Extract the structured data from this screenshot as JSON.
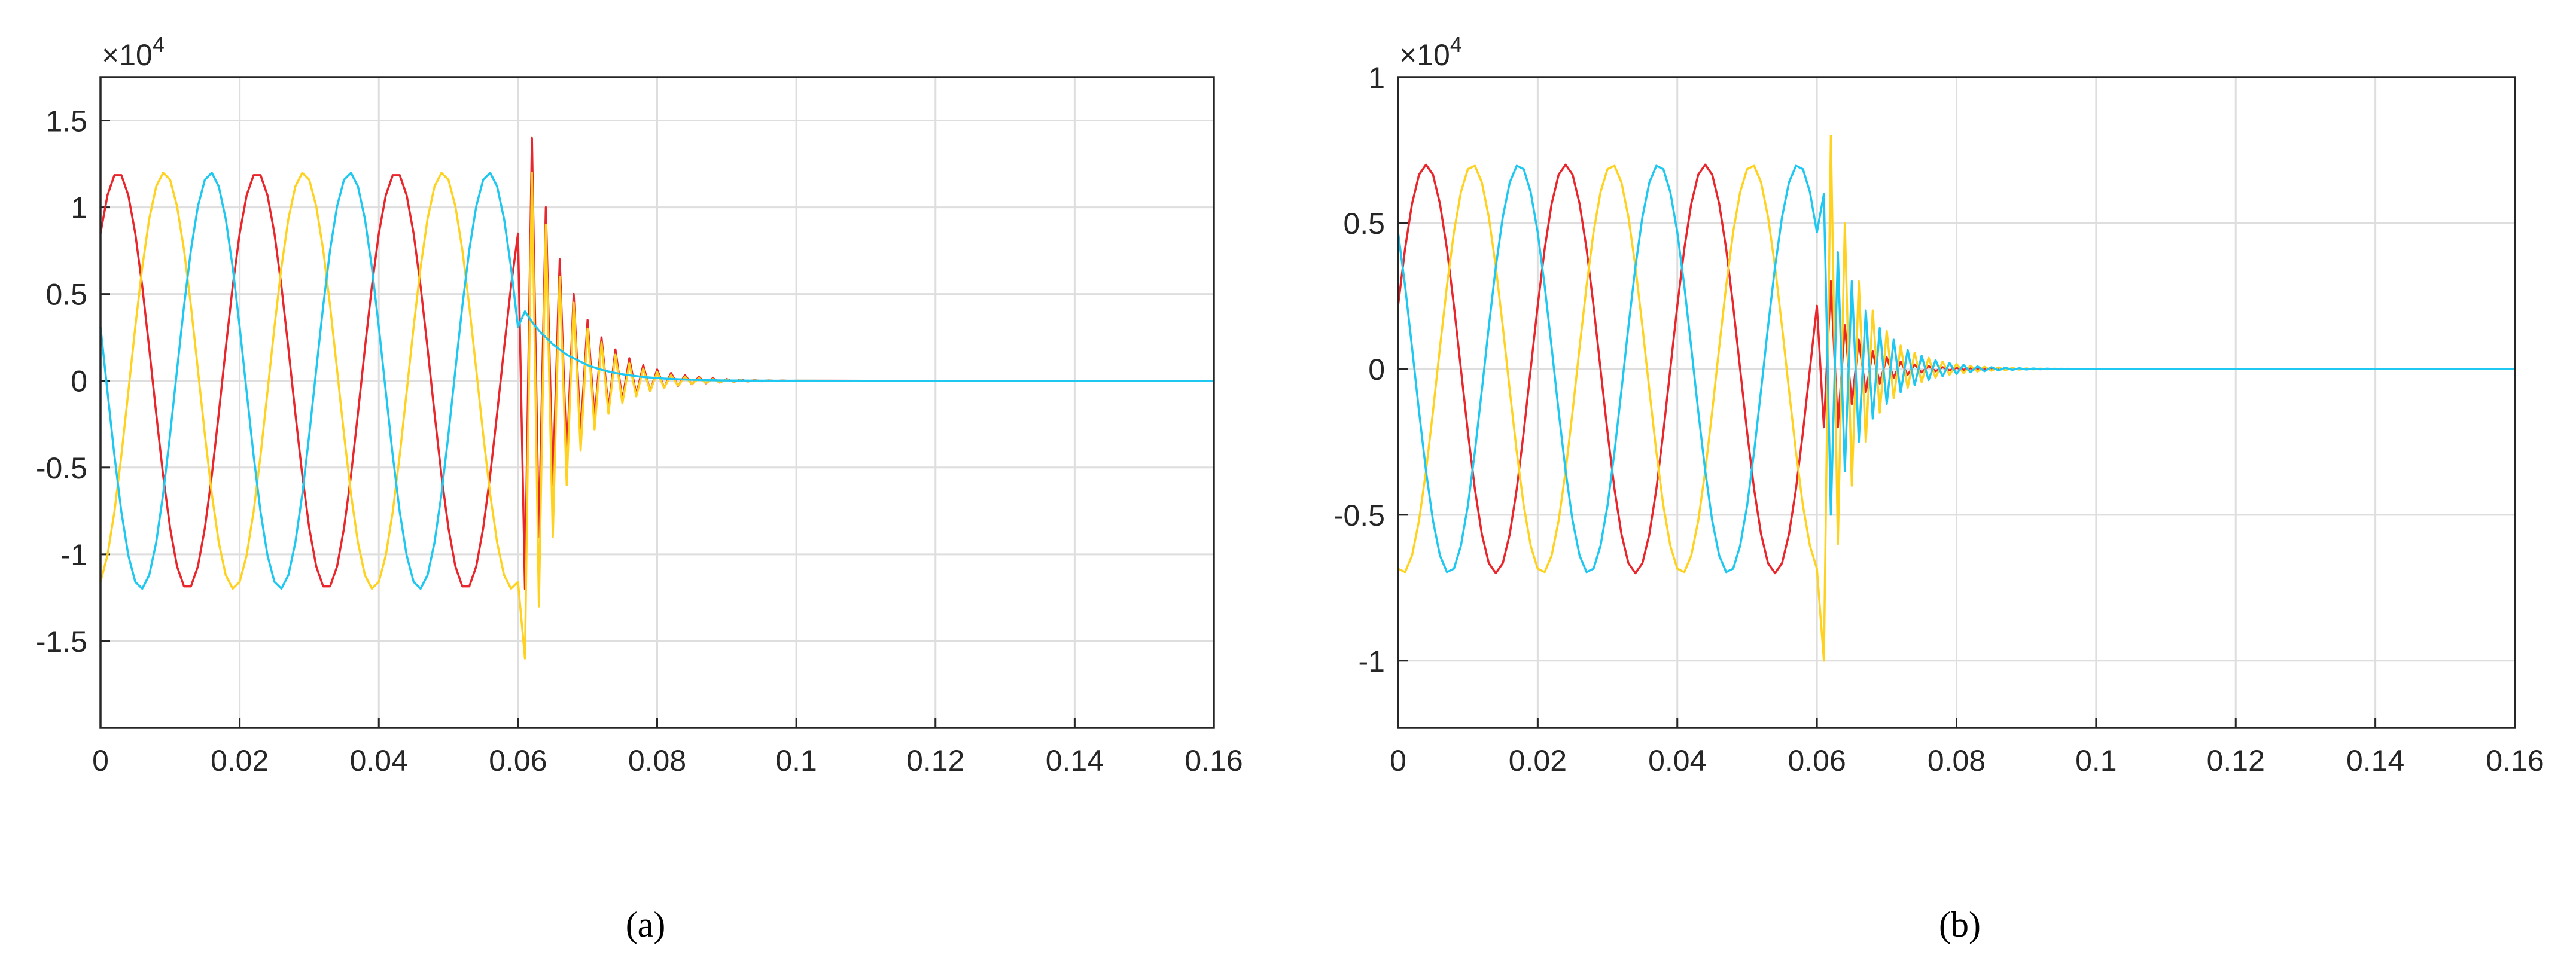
{
  "chart_data": [
    {
      "type": "line",
      "caption": "(a)",
      "y_multiplier": "×10",
      "y_exponent": "4",
      "x": [
        0,
        0.001,
        0.002,
        0.003,
        0.004,
        0.005,
        0.006,
        0.007,
        0.008,
        0.009,
        0.01,
        0.011,
        0.012,
        0.013,
        0.014,
        0.015,
        0.016,
        0.017,
        0.018,
        0.019,
        0.02,
        0.021,
        0.022,
        0.023,
        0.024,
        0.025,
        0.026,
        0.027,
        0.028,
        0.029,
        0.03,
        0.031,
        0.032,
        0.033,
        0.034,
        0.035,
        0.036,
        0.037,
        0.038,
        0.039,
        0.04,
        0.041,
        0.042,
        0.043,
        0.044,
        0.045,
        0.046,
        0.047,
        0.048,
        0.049,
        0.05,
        0.051,
        0.052,
        0.053,
        0.054,
        0.055,
        0.056,
        0.057,
        0.058,
        0.059,
        0.06,
        0.061,
        0.062,
        0.063,
        0.064,
        0.065,
        0.066,
        0.067,
        0.068,
        0.069,
        0.07,
        0.071,
        0.072,
        0.073,
        0.074,
        0.075,
        0.076,
        0.077,
        0.078,
        0.079,
        0.08,
        0.081,
        0.082,
        0.083,
        0.084,
        0.085,
        0.086,
        0.087,
        0.088,
        0.089,
        0.09,
        0.091,
        0.092,
        0.093,
        0.094,
        0.095,
        0.096,
        0.097,
        0.098,
        0.099,
        0.1,
        0.11,
        0.12,
        0.13,
        0.14,
        0.15,
        0.16
      ],
      "series": [
        {
          "color": "#e8262b",
          "values": [
            8485,
            10692,
            11852,
            11852,
            10692,
            8485,
            5448,
            1877,
            -1877,
            -5448,
            -8485,
            -10692,
            -11852,
            -11852,
            -10692,
            -8485,
            -5448,
            -1877,
            1877,
            5448,
            8485,
            10692,
            11852,
            11852,
            10692,
            8485,
            5448,
            1877,
            -1877,
            -5448,
            -8485,
            -10692,
            -11852,
            -11852,
            -10692,
            -8485,
            -5448,
            -1877,
            1877,
            5448,
            8485,
            10692,
            11852,
            11852,
            10692,
            8485,
            5448,
            1877,
            -1877,
            -5448,
            -8485,
            -10692,
            -11852,
            -11852,
            -10692,
            -8485,
            -5448,
            -1877,
            1877,
            5448,
            8485,
            -12000,
            14000,
            -9000,
            10000,
            -6000,
            7000,
            -4500,
            5000,
            -3000,
            3500,
            -2200,
            2500,
            -1600,
            1800,
            -1100,
            1300,
            -800,
            900,
            -600,
            650,
            -400,
            450,
            -300,
            320,
            -200,
            220,
            -140,
            150,
            -100,
            100,
            -60,
            70,
            -40,
            40,
            -25,
            25,
            -15,
            15,
            -8,
            5,
            0,
            0,
            0,
            0,
            0,
            0
          ]
        },
        {
          "color": "#ffd21f",
          "values": [
            -11591,
            -10064,
            -7552,
            -4301,
            -628,
            3106,
            6535,
            9325,
            11203,
            11984,
            11591,
            10064,
            7552,
            4301,
            628,
            -3106,
            -6535,
            -9325,
            -11203,
            -11984,
            -11591,
            -10064,
            -7552,
            -4301,
            -628,
            3106,
            6535,
            9325,
            11203,
            11984,
            11591,
            10064,
            7552,
            4301,
            628,
            -3106,
            -6535,
            -9325,
            -11203,
            -11984,
            -11591,
            -10064,
            -7552,
            -4301,
            -628,
            3106,
            6535,
            9325,
            11203,
            11984,
            11591,
            10064,
            7552,
            4301,
            628,
            -3106,
            -6535,
            -9325,
            -11203,
            -11984,
            -11591,
            -16000,
            12000,
            -13000,
            9000,
            -9000,
            6000,
            -6000,
            4500,
            -4000,
            3000,
            -2800,
            2200,
            -1900,
            1500,
            -1300,
            1000,
            -900,
            700,
            -600,
            500,
            -400,
            330,
            -280,
            230,
            -180,
            150,
            -120,
            100,
            -80,
            60,
            -50,
            40,
            -30,
            25,
            -20,
            15,
            -10,
            8,
            -5,
            2,
            0,
            0,
            0,
            0,
            0,
            0
          ]
        },
        {
          "color": "#1ec8f0",
          "values": [
            3106,
            -628,
            -4301,
            -7552,
            -10064,
            -11591,
            -11984,
            -11203,
            -9325,
            -6535,
            -3106,
            628,
            4301,
            7552,
            10064,
            11591,
            11984,
            11203,
            9325,
            6535,
            3106,
            -628,
            -4301,
            -7552,
            -10064,
            -11591,
            -11984,
            -11203,
            -9325,
            -6535,
            -3106,
            628,
            4301,
            7552,
            10064,
            11591,
            11984,
            11203,
            9325,
            6535,
            3106,
            -628,
            -4301,
            -7552,
            -10064,
            -11591,
            -11984,
            -11203,
            -9325,
            -6535,
            -3106,
            628,
            4301,
            7552,
            10064,
            11591,
            11984,
            11203,
            9325,
            6535,
            3106,
            4000,
            3400,
            2900,
            2500,
            2100,
            1800,
            1500,
            1300,
            1100,
            900,
            760,
            640,
            540,
            450,
            380,
            320,
            270,
            220,
            190,
            160,
            130,
            110,
            90,
            75,
            60,
            50,
            40,
            33,
            27,
            22,
            18,
            15,
            12,
            10,
            8,
            6,
            5,
            4,
            3,
            2,
            0,
            0,
            0,
            0,
            0,
            0
          ]
        }
      ],
      "xlim": [
        0,
        0.16
      ],
      "xticks": [
        0,
        0.02,
        0.04,
        0.06,
        0.08,
        0.1,
        0.12,
        0.14,
        0.16
      ],
      "ylim": [
        -20000,
        17500
      ],
      "yticks": [
        {
          "value": -15000,
          "label": "-1.5"
        },
        {
          "value": -10000,
          "label": "-1"
        },
        {
          "value": -5000,
          "label": "-0.5"
        },
        0,
        {
          "value": 5000,
          "label": "0.5"
        },
        {
          "value": 10000,
          "label": "1"
        },
        {
          "value": 15000,
          "label": "1.5"
        }
      ],
      "grid": true
    },
    {
      "type": "line",
      "caption": "(b)",
      "y_multiplier": "×10",
      "y_exponent": "4",
      "x": [
        0,
        0.001,
        0.002,
        0.003,
        0.004,
        0.005,
        0.006,
        0.007,
        0.008,
        0.009,
        0.01,
        0.011,
        0.012,
        0.013,
        0.014,
        0.015,
        0.016,
        0.017,
        0.018,
        0.019,
        0.02,
        0.021,
        0.022,
        0.023,
        0.024,
        0.025,
        0.026,
        0.027,
        0.028,
        0.029,
        0.03,
        0.031,
        0.032,
        0.033,
        0.034,
        0.035,
        0.036,
        0.037,
        0.038,
        0.039,
        0.04,
        0.041,
        0.042,
        0.043,
        0.044,
        0.045,
        0.046,
        0.047,
        0.048,
        0.049,
        0.05,
        0.051,
        0.052,
        0.053,
        0.054,
        0.055,
        0.056,
        0.057,
        0.058,
        0.059,
        0.06,
        0.061,
        0.062,
        0.063,
        0.064,
        0.065,
        0.066,
        0.067,
        0.068,
        0.069,
        0.07,
        0.071,
        0.072,
        0.073,
        0.074,
        0.075,
        0.076,
        0.077,
        0.078,
        0.079,
        0.08,
        0.081,
        0.082,
        0.083,
        0.084,
        0.085,
        0.086,
        0.087,
        0.088,
        0.089,
        0.09,
        0.091,
        0.092,
        0.093,
        0.094,
        0.095,
        0.096,
        0.097,
        0.098,
        0.099,
        0.1,
        0.11,
        0.12,
        0.13,
        0.14,
        0.15,
        0.16
      ],
      "series": [
        {
          "color": "#e8262b",
          "values": [
            2163,
            4115,
            5663,
            6658,
            7000,
            6658,
            5663,
            4115,
            2163,
            0,
            -2163,
            -4115,
            -5663,
            -6658,
            -7000,
            -6658,
            -5663,
            -4115,
            -2163,
            0,
            2163,
            4115,
            5663,
            6658,
            7000,
            6658,
            5663,
            4115,
            2163,
            0,
            -2163,
            -4115,
            -5663,
            -6658,
            -7000,
            -6658,
            -5663,
            -4115,
            -2163,
            0,
            2163,
            4115,
            5663,
            6658,
            7000,
            6658,
            5663,
            4115,
            2163,
            0,
            -2163,
            -4115,
            -5663,
            -6658,
            -7000,
            -6658,
            -5663,
            -4115,
            -2163,
            0,
            2163,
            -2000,
            3000,
            -2000,
            1500,
            -1200,
            1000,
            -800,
            600,
            -500,
            400,
            -300,
            250,
            -200,
            150,
            -120,
            100,
            -80,
            60,
            -50,
            40,
            -30,
            25,
            -20,
            15,
            -12,
            10,
            -8,
            6,
            -5,
            4,
            -3,
            2,
            -2,
            1,
            -1,
            1,
            0,
            0,
            0,
            0,
            0,
            0,
            0,
            0,
            0,
            0
          ]
        },
        {
          "color": "#ffd21f",
          "values": [
            -6847,
            -6962,
            -6395,
            -5202,
            -3500,
            -1455,
            732,
            2847,
            4684,
            6062,
            6847,
            6962,
            6395,
            5202,
            3500,
            1455,
            -732,
            -2847,
            -4684,
            -6062,
            -6847,
            -6962,
            -6395,
            -5202,
            -3500,
            -1455,
            732,
            2847,
            4684,
            6062,
            6847,
            6962,
            6395,
            5202,
            3500,
            1455,
            -732,
            -2847,
            -4684,
            -6062,
            -6847,
            -6962,
            -6395,
            -5202,
            -3500,
            -1455,
            732,
            2847,
            4684,
            6062,
            6847,
            6962,
            6395,
            5202,
            3500,
            1455,
            -732,
            -2847,
            -4684,
            -6062,
            -6847,
            -10000,
            8000,
            -6000,
            5000,
            -4000,
            3000,
            -2500,
            2000,
            -1500,
            1300,
            -1000,
            800,
            -650,
            550,
            -450,
            380,
            -300,
            250,
            -200,
            170,
            -140,
            110,
            -90,
            75,
            -60,
            50,
            -40,
            32,
            -25,
            20,
            -16,
            12,
            -10,
            8,
            -6,
            5,
            -4,
            3,
            -2,
            1,
            0,
            0,
            0,
            0,
            0,
            0
          ]
        },
        {
          "color": "#1ec8f0",
          "values": [
            4684,
            2847,
            732,
            -1455,
            -3500,
            -5202,
            -6395,
            -6962,
            -6847,
            -6062,
            -4684,
            -2847,
            -732,
            1455,
            3500,
            5202,
            6395,
            6962,
            6847,
            6062,
            4684,
            2847,
            732,
            -1455,
            -3500,
            -5202,
            -6395,
            -6962,
            -6847,
            -6062,
            -4684,
            -2847,
            -732,
            1455,
            3500,
            5202,
            6395,
            6962,
            6847,
            6062,
            4684,
            2847,
            732,
            -1455,
            -3500,
            -5202,
            -6395,
            -6962,
            -6847,
            -6062,
            -4684,
            -2847,
            -732,
            1455,
            3500,
            5202,
            6395,
            6962,
            6847,
            6062,
            4684,
            6000,
            -5000,
            4000,
            -3500,
            3000,
            -2500,
            2000,
            -1700,
            1400,
            -1200,
            1000,
            -800,
            650,
            -550,
            450,
            -380,
            300,
            -250,
            200,
            -170,
            140,
            -110,
            90,
            -75,
            60,
            -50,
            40,
            -32,
            25,
            -20,
            16,
            -12,
            10,
            -8,
            6,
            -5,
            4,
            -3,
            2,
            -1,
            0,
            0,
            0,
            0,
            0,
            0
          ]
        }
      ],
      "xlim": [
        0,
        0.16
      ],
      "xticks": [
        0,
        0.02,
        0.04,
        0.06,
        0.08,
        0.1,
        0.12,
        0.14,
        0.16
      ],
      "ylim": [
        -12300,
        10000
      ],
      "yticks": [
        {
          "value": -10000,
          "label": "-1"
        },
        {
          "value": -5000,
          "label": "-0.5"
        },
        0,
        {
          "value": 5000,
          "label": "0.5"
        },
        {
          "value": 10000,
          "label": "1"
        }
      ],
      "grid": true
    }
  ]
}
